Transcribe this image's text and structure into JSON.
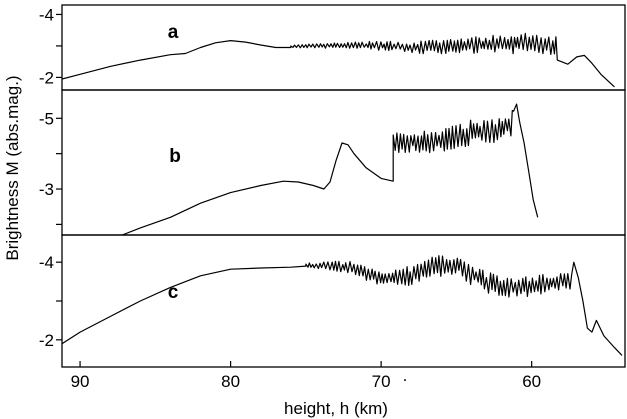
{
  "chart_data": {
    "type": "line",
    "xlabel": "height,  h (km)",
    "ylabel": "Brightness M (abs.mag.)",
    "x_tick_labels": [
      "90",
      "80",
      "70",
      "60"
    ],
    "x_ticks": [
      90,
      80,
      70,
      60
    ],
    "xlim": [
      91.2,
      53.8
    ],
    "x_stray_mark": ".",
    "panels": [
      {
        "label": "a",
        "ylim": [
          -1.6,
          -4.3
        ],
        "y_ticks": [
          -2,
          -3,
          -4
        ],
        "y_tick_labels": [
          "-2",
          "",
          "-4"
        ],
        "smooth": [
          [
            91.2,
            -1.95
          ],
          [
            90,
            -2.1
          ],
          [
            88,
            -2.35
          ],
          [
            86,
            -2.55
          ],
          [
            84,
            -2.72
          ],
          [
            83,
            -2.76
          ],
          [
            82,
            -2.95
          ],
          [
            81,
            -3.1
          ],
          [
            80,
            -3.17
          ],
          [
            79,
            -3.12
          ],
          [
            78,
            -3.03
          ],
          [
            77,
            -2.95
          ],
          [
            76,
            -2.95
          ]
        ],
        "noisy": {
          "x_start": 76,
          "x_end": 58.3,
          "base": [
            [
              76,
              -2.98
            ],
            [
              72,
              -3.02
            ],
            [
              70,
              -3.0
            ],
            [
              68,
              -2.95
            ],
            [
              65,
              -3.0
            ],
            [
              62,
              -3.05
            ],
            [
              60,
              -3.1
            ],
            [
              58.3,
              -3.0
            ]
          ],
          "amplitude": [
            [
              76,
              0.05
            ],
            [
              72,
              0.1
            ],
            [
              69,
              0.18
            ],
            [
              65,
              0.25
            ],
            [
              61,
              0.32
            ],
            [
              58.3,
              0.3
            ]
          ]
        },
        "tail": [
          [
            58.3,
            -2.55
          ],
          [
            57.6,
            -2.42
          ],
          [
            57,
            -2.65
          ],
          [
            56.5,
            -2.7
          ],
          [
            56,
            -2.45
          ],
          [
            55.4,
            -2.1
          ],
          [
            54.5,
            -1.7
          ]
        ]
      },
      {
        "label": "b",
        "ylim": [
          -1.7,
          -5.8
        ],
        "y_ticks": [
          -2,
          -3,
          -4,
          -5
        ],
        "y_tick_labels": [
          "",
          "-3",
          "",
          "-5"
        ],
        "smooth": [
          [
            87.2,
            -1.7
          ],
          [
            86,
            -1.9
          ],
          [
            84,
            -2.2
          ],
          [
            82,
            -2.6
          ],
          [
            80,
            -2.9
          ],
          [
            78,
            -3.1
          ],
          [
            76.5,
            -3.22
          ],
          [
            75.5,
            -3.2
          ],
          [
            74.5,
            -3.1
          ],
          [
            73.8,
            -3.0
          ],
          [
            73.4,
            -3.2
          ],
          [
            73,
            -3.8
          ],
          [
            72.6,
            -4.3
          ],
          [
            72.2,
            -4.25
          ],
          [
            71.8,
            -4.0
          ],
          [
            71,
            -3.6
          ],
          [
            70,
            -3.3
          ],
          [
            69.2,
            -3.22
          ]
        ],
        "noisy": {
          "x_start": 69.2,
          "x_end": 61.2,
          "base": [
            [
              69.2,
              -4.3
            ],
            [
              67.5,
              -4.35
            ],
            [
              66,
              -4.35
            ],
            [
              64,
              -4.6
            ],
            [
              62.5,
              -4.65
            ],
            [
              61.2,
              -4.9
            ]
          ],
          "amplitude": [
            [
              69.2,
              0.3
            ],
            [
              65,
              0.35
            ],
            [
              61.2,
              0.4
            ]
          ]
        },
        "tail": [
          [
            61.2,
            -5.2
          ],
          [
            61,
            -5.4
          ],
          [
            60.8,
            -4.9
          ],
          [
            60.5,
            -4.3
          ],
          [
            60.2,
            -3.5
          ],
          [
            59.9,
            -2.7
          ],
          [
            59.6,
            -2.2
          ]
        ]
      },
      {
        "label": "c",
        "ylim": [
          -1.3,
          -4.7
        ],
        "y_ticks": [
          -2,
          -3,
          -4
        ],
        "y_tick_labels": [
          "-2",
          "",
          "-4"
        ],
        "smooth": [
          [
            91.2,
            -1.9
          ],
          [
            90,
            -2.2
          ],
          [
            88,
            -2.6
          ],
          [
            86,
            -3.0
          ],
          [
            84,
            -3.35
          ],
          [
            82,
            -3.65
          ],
          [
            80,
            -3.82
          ],
          [
            78,
            -3.85
          ],
          [
            76,
            -3.87
          ],
          [
            75,
            -3.9
          ]
        ],
        "noisy": {
          "x_start": 75,
          "x_end": 57.2,
          "base": [
            [
              75,
              -3.92
            ],
            [
              73,
              -3.9
            ],
            [
              72,
              -3.85
            ],
            [
              70,
              -3.6
            ],
            [
              68,
              -3.65
            ],
            [
              66.5,
              -3.9
            ],
            [
              65,
              -3.95
            ],
            [
              64,
              -3.7
            ],
            [
              62.5,
              -3.4
            ],
            [
              61,
              -3.35
            ],
            [
              59,
              -3.45
            ],
            [
              57.2,
              -3.55
            ]
          ],
          "amplitude": [
            [
              75,
              0.05
            ],
            [
              72,
              0.18
            ],
            [
              68,
              0.25
            ],
            [
              65,
              0.3
            ],
            [
              62,
              0.28
            ],
            [
              57.2,
              0.25
            ]
          ]
        },
        "tail": [
          [
            57.2,
            -4.0
          ],
          [
            56.9,
            -3.6
          ],
          [
            56.6,
            -3.0
          ],
          [
            56.3,
            -2.3
          ],
          [
            56,
            -2.2
          ],
          [
            55.7,
            -2.5
          ],
          [
            55.2,
            -2.1
          ],
          [
            54.5,
            -1.8
          ],
          [
            54,
            -1.6
          ]
        ]
      }
    ]
  }
}
